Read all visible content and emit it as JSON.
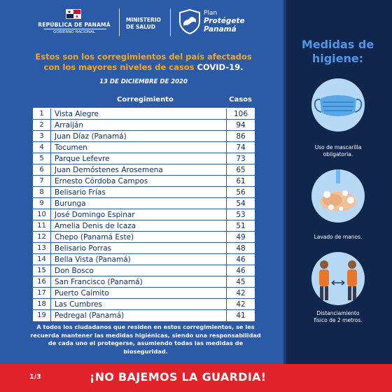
{
  "header": {
    "republic": "REPÚBLICA DE PANAMÁ",
    "government": "GOBIERNO NACIONAL",
    "ministry_line1": "MINISTERIO",
    "ministry_line2": "DE SALUD",
    "plan_small": "Plan",
    "plan_big_line1": "Protégete",
    "plan_big_line2": "Panamá"
  },
  "intro": {
    "line1": "Estos son los corregimientos del país afectados",
    "line2_pre": "con los mayores niveles de casos ",
    "line2_highlight": "COVID-19.",
    "date": "13  DE DICIEMBRE DE 2020"
  },
  "table": {
    "col_name": "Corregimiento",
    "col_cases": "Casos",
    "rows": [
      {
        "n": "1",
        "name": "Vista Alegre",
        "cases": "106"
      },
      {
        "n": "2",
        "name": "Arraiján",
        "cases": "94"
      },
      {
        "n": "3",
        "name": "Juan Díaz (Panamá)",
        "cases": "86"
      },
      {
        "n": "4",
        "name": "Tocumen",
        "cases": "74"
      },
      {
        "n": "5",
        "name": "Parque Lefevre",
        "cases": "73"
      },
      {
        "n": "6",
        "name": "Juan Demóstenes Arosemena",
        "cases": "65"
      },
      {
        "n": "7",
        "name": "Ernesto Córdoba Campos",
        "cases": "61"
      },
      {
        "n": "8",
        "name": "Belisario Frías",
        "cases": "56"
      },
      {
        "n": "9",
        "name": "Burunga",
        "cases": "54"
      },
      {
        "n": "10",
        "name": "José Domingo Espinar",
        "cases": "53"
      },
      {
        "n": "11",
        "name": "Amelia Denis de Icaza",
        "cases": "51"
      },
      {
        "n": "12",
        "name": "Chepo (Panamá Este)",
        "cases": "49"
      },
      {
        "n": "13",
        "name": "Belisario Porras",
        "cases": "48"
      },
      {
        "n": "14",
        "name": "Bella Vista (Panamá)",
        "cases": "46"
      },
      {
        "n": "15",
        "name": "Don Bosco",
        "cases": "46"
      },
      {
        "n": "16",
        "name": "San Francisco (Panamá)",
        "cases": "45"
      },
      {
        "n": "17",
        "name": "Puerto Caimito",
        "cases": "42"
      },
      {
        "n": "18",
        "name": "Las Cumbres",
        "cases": "42"
      },
      {
        "n": "19",
        "name": "Pedregal (Panamá)",
        "cases": "41"
      }
    ]
  },
  "footer_text": "A todos los ciudadanos que residen en estos corregimientos, se les recuerda mantener las medidas higiénicas, siendo una responsabilidad de cada uno el protegerse, asumiendo todas  las medidas de bioseguridad.",
  "panel": {
    "title_line1": "Medidas de",
    "title_line2": "higiene:",
    "items": [
      {
        "icon": "face-mask-icon",
        "caption_line1": "Uso de mascarilla",
        "caption_line2": "obligatoria."
      },
      {
        "icon": "hand-washing-icon",
        "caption_line1": "Lavado de manos.",
        "caption_line2": ""
      },
      {
        "icon": "social-distance-icon",
        "caption_line1": "Distanciamiento",
        "caption_line2": "físico de 2 metros."
      }
    ]
  },
  "banner": {
    "page": "1/3",
    "slogan": "¡NO BAJEMOS LA GUARDIA!"
  },
  "colors": {
    "background": "#2b5aa6",
    "panel": "#10264d",
    "accent_orange": "#f5a623",
    "title_blue": "#4f95e8",
    "banner_red": "#e0222b"
  }
}
